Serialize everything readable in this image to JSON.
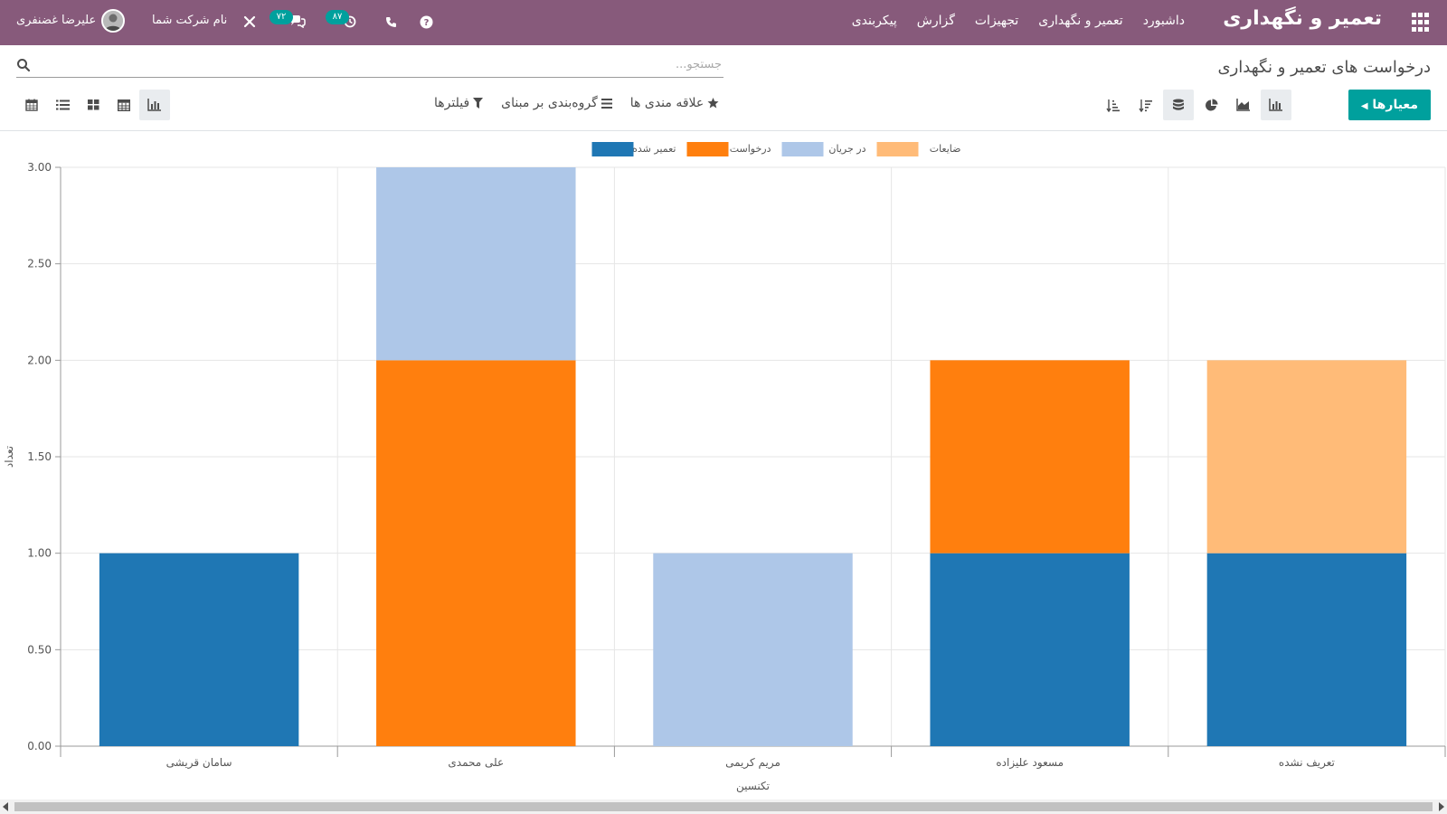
{
  "app": {
    "brand": "تعمیر و نگهداری",
    "menu": [
      "داشبورد",
      "تعمیر و نگهداری",
      "تجهیزات",
      "گزارش",
      "پیکربندی"
    ]
  },
  "systray": {
    "user_name": "علیرضا غضنفری",
    "company": "نام شرکت شما",
    "messages_count": "۷۲",
    "activities_count": "۸۷"
  },
  "control_panel": {
    "breadcrumb": "درخواست های تعمیر و نگهداری",
    "search_placeholder": "جستجو...",
    "measures_label": "معیارها",
    "filters_label": "فیلترها",
    "groupby_label": "گروه‌بندی بر مبنای",
    "favorites_label": "علاقه مندی ها"
  },
  "icons": {
    "apps": "apps-grid-icon",
    "search": "search-icon",
    "help": "help-icon",
    "phone": "phone-icon",
    "clock": "clock-icon",
    "chat": "chat-icon",
    "tools": "tools-icon",
    "bar": "bar-chart-icon",
    "line": "area-chart-icon",
    "pie": "pie-chart-icon",
    "stack": "stack-icon",
    "sort_desc": "sort-desc-icon",
    "sort_asc": "sort-asc-icon",
    "filter": "filter-icon",
    "groupby": "list-icon",
    "favorite": "star-icon",
    "graph_view": "graph-view-icon",
    "pivot_view": "pivot-view-icon",
    "kanban_view": "kanban-view-icon",
    "list_view": "list-view-icon",
    "calendar_view": "calendar-view-icon"
  },
  "colors": {
    "topbar": "#875a7b",
    "primary": "#00a09d"
  },
  "chart_data": {
    "type": "bar",
    "stacked": true,
    "categories": [
      "سامان قریشی",
      "علی محمدی",
      "مریم کریمی",
      "مسعود علیزاده",
      "تعریف نشده"
    ],
    "series": [
      {
        "name": "تعمیر شده",
        "color": "#1f77b4",
        "values": [
          1,
          0,
          0,
          1,
          1
        ]
      },
      {
        "name": "درخواست جدید",
        "color": "#ff7f0e",
        "values": [
          0,
          2,
          0,
          1,
          0
        ]
      },
      {
        "name": "در جریان",
        "color": "#aec7e8",
        "values": [
          0,
          1,
          1,
          0,
          0
        ]
      },
      {
        "name": "ضایعات",
        "color": "#ffbb78",
        "values": [
          0,
          0,
          0,
          0,
          1
        ]
      }
    ],
    "legend_order": [
      "ضایعات",
      "در جریان",
      "درخواست جدید",
      "تعمیر شده"
    ],
    "ylim": [
      0,
      3
    ],
    "yticks": [
      "0.00",
      "0.50",
      "1.00",
      "1.50",
      "2.00",
      "2.50",
      "3.00"
    ],
    "xlabel": "تکنسین",
    "ylabel": "تعداد",
    "legend_position": "top",
    "grid": true
  }
}
